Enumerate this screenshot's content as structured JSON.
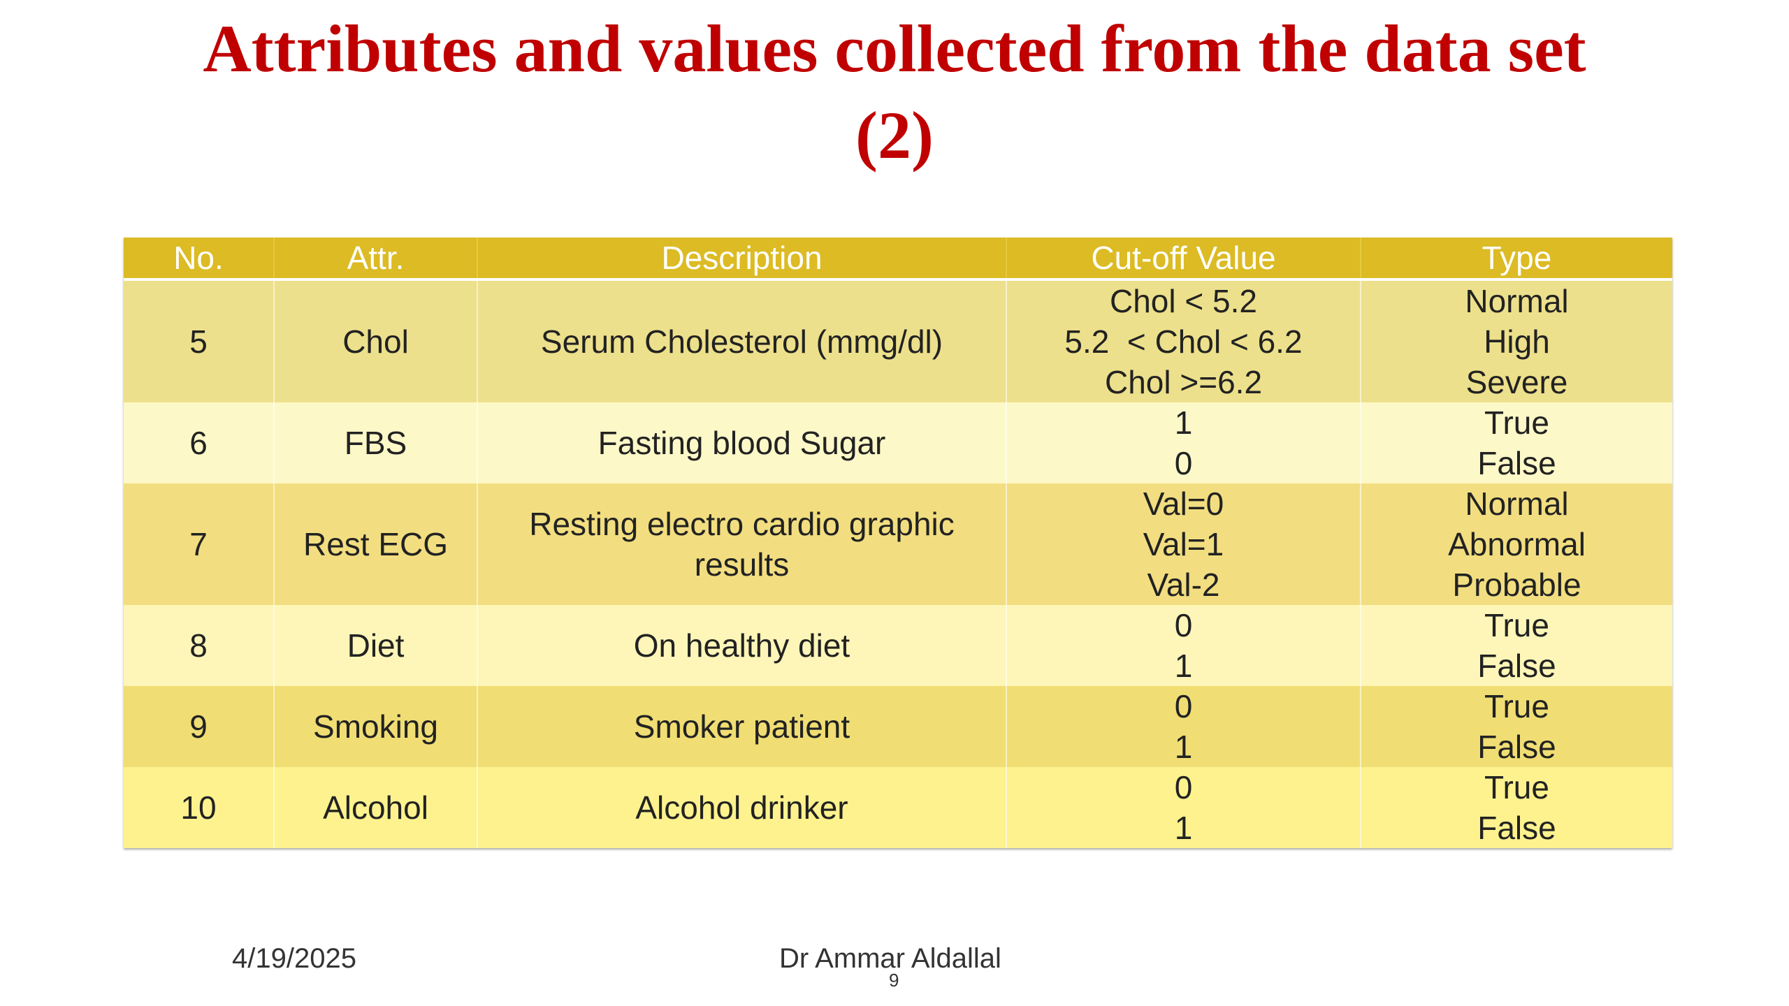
{
  "slide": {
    "title_line1": "Attributes and values collected from the data set",
    "title_line2": "(2)"
  },
  "table": {
    "headers": [
      "No.",
      "Attr.",
      "Description",
      "Cut-off Value",
      "Type"
    ],
    "rows": [
      {
        "no": "5",
        "attr": "Chol",
        "description": [
          "Serum Cholesterol (mmg/dl)"
        ],
        "cutoff": [
          "Chol < 5.2",
          "5.2  < Chol < 6.2",
          "Chol >=6.2"
        ],
        "type": [
          "Normal",
          "High",
          "Severe"
        ]
      },
      {
        "no": "6",
        "attr": "FBS",
        "description": [
          "Fasting blood Sugar"
        ],
        "cutoff": [
          "1",
          "0"
        ],
        "type": [
          "True",
          "False"
        ]
      },
      {
        "no": "7",
        "attr": "Rest ECG",
        "description": [
          "Resting electro cardio graphic",
          "results"
        ],
        "cutoff": [
          "Val=0",
          "Val=1",
          "Val-2"
        ],
        "type": [
          "Normal",
          "Abnormal",
          "Probable"
        ]
      },
      {
        "no": "8",
        "attr": "Diet",
        "description": [
          "On healthy diet"
        ],
        "cutoff": [
          "0",
          "1"
        ],
        "type": [
          "True",
          "False"
        ]
      },
      {
        "no": "9",
        "attr": "Smoking",
        "description": [
          "Smoker patient"
        ],
        "cutoff": [
          "0",
          "1"
        ],
        "type": [
          "True",
          "False"
        ]
      },
      {
        "no": "10",
        "attr": "Alcohol",
        "description": [
          "Alcohol drinker"
        ],
        "cutoff": [
          "0",
          "1"
        ],
        "type": [
          "True",
          "False"
        ]
      }
    ]
  },
  "footer": {
    "date": "4/19/2025",
    "author": "Dr Ammar Aldallal",
    "page_number": "9"
  },
  "colors": {
    "title": "#c00000",
    "header_bg": "#dcbb24",
    "header_text": "#ffffff"
  }
}
